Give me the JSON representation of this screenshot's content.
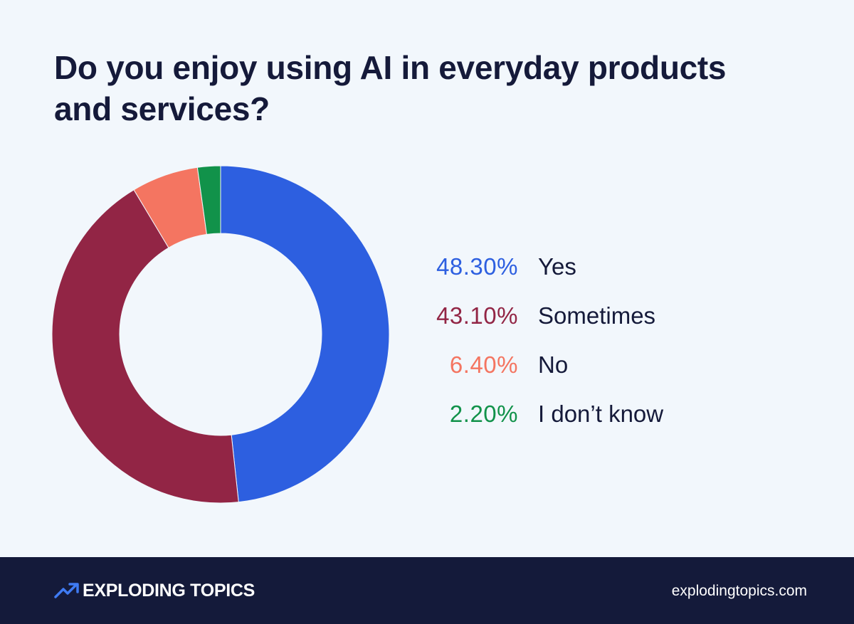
{
  "chart_data": {
    "type": "pie",
    "title": "Do you enjoy using AI in everyday products and services?",
    "categories": [
      "Yes",
      "Sometimes",
      "No",
      "I don’t know"
    ],
    "values": [
      48.3,
      43.1,
      6.4,
      2.2
    ],
    "value_labels": [
      "48.30%",
      "43.10%",
      "6.40%",
      "2.20%"
    ],
    "colors": [
      "#2d5fe0",
      "#922545",
      "#f47561",
      "#11924a"
    ],
    "donut": true,
    "legend_position": "right"
  },
  "footer": {
    "brand": "EXPLODING TOPICS",
    "url": "explodingtopics.com"
  },
  "icons": {
    "brand": "trending-arrow-icon"
  }
}
